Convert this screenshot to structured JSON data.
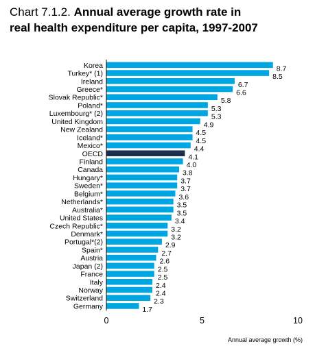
{
  "title_prefix": "Chart 7.1.2.",
  "title_line1": "Annual average growth rate in",
  "title_line2": "real health expenditure per capita, 1997-2007",
  "colors": {
    "bar": "#00a6e2",
    "highlight": "#1b2e4b",
    "axis": "#000000"
  },
  "chart_data": {
    "type": "bar",
    "orientation": "horizontal",
    "title": "Annual average growth rate in real health expenditure per capita, 1997-2007",
    "xlabel": "Annual average growth (%)",
    "ylabel": "",
    "xlim": [
      0,
      10
    ],
    "xticks": [
      0,
      5,
      10
    ],
    "grid": false,
    "highlight": "OECD",
    "categories": [
      "Korea",
      "Turkey* (1)",
      "Ireland",
      "Greece*",
      "Slovak Republic*",
      "Poland*",
      "Luxembourg* (2)",
      "United Kingdom",
      "New Zealand",
      "Iceland*",
      "Mexico*",
      "OECD",
      "Finland",
      "Canada",
      "Hungary*",
      "Sweden*",
      "Belgium*",
      "Netherlands*",
      "Australia*",
      "United States",
      "Czech Republic*",
      "Denmark*",
      "Portugal*(2)",
      "Spain*",
      "Austria",
      "Japan (2)",
      "France",
      "Italy",
      "Norway",
      "Switzerland",
      "Germany"
    ],
    "values": [
      8.7,
      8.5,
      6.7,
      6.6,
      5.8,
      5.3,
      5.3,
      4.9,
      4.5,
      4.5,
      4.4,
      4.1,
      4.0,
      3.8,
      3.7,
      3.7,
      3.6,
      3.5,
      3.5,
      3.4,
      3.2,
      3.2,
      2.9,
      2.7,
      2.6,
      2.5,
      2.5,
      2.4,
      2.4,
      2.3,
      1.7
    ],
    "value_labels": [
      "8.7",
      "8.5",
      "6.7",
      "6.6",
      "5.8",
      "5.3",
      "5.3",
      "4.9",
      "4.5",
      "4.5",
      "4.4",
      "4.1",
      "4.0",
      "3.8",
      "3.7",
      "3.7",
      "3.6",
      "3.5",
      "3.5",
      "3.4",
      "3.2",
      "3.2",
      "2.9",
      "2.7",
      "2.6",
      "2.5",
      "2.5",
      "2.4",
      "2.4",
      "2.3",
      "1.7"
    ]
  }
}
